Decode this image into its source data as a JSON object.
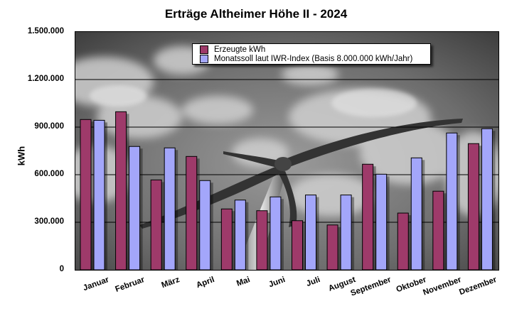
{
  "chart_data": {
    "type": "bar",
    "title": "Erträge Altheimer Höhe II - 2024",
    "xlabel": "",
    "ylabel": "kWh",
    "ylim": [
      0,
      1500000
    ],
    "yticks": [
      "0",
      "300.000",
      "600.000",
      "900.000",
      "1.200.000",
      "1.500.000"
    ],
    "ytick_values": [
      0,
      300000,
      600000,
      900000,
      1200000,
      1500000
    ],
    "grid": true,
    "legend_position": "top-center inside plot",
    "categories": [
      "Januar",
      "Februar",
      "März",
      "April",
      "Mai",
      "Juni",
      "Juli",
      "August",
      "September",
      "Oktober",
      "November",
      "Dezember"
    ],
    "series": [
      {
        "name": "Erzeugte kWh",
        "color": "#9e3a6a",
        "values": [
          948000,
          997000,
          567000,
          715000,
          384000,
          373000,
          310000,
          283000,
          666000,
          358000,
          496000,
          796000
        ]
      },
      {
        "name": "Monatssoll laut IWR-Index (Basis 8.000.000 kWh/Jahr)",
        "color": "#a3a6fa",
        "values": [
          943000,
          778000,
          769000,
          563000,
          440000,
          460000,
          472000,
          472000,
          603000,
          706000,
          863000,
          890000
        ]
      }
    ]
  }
}
